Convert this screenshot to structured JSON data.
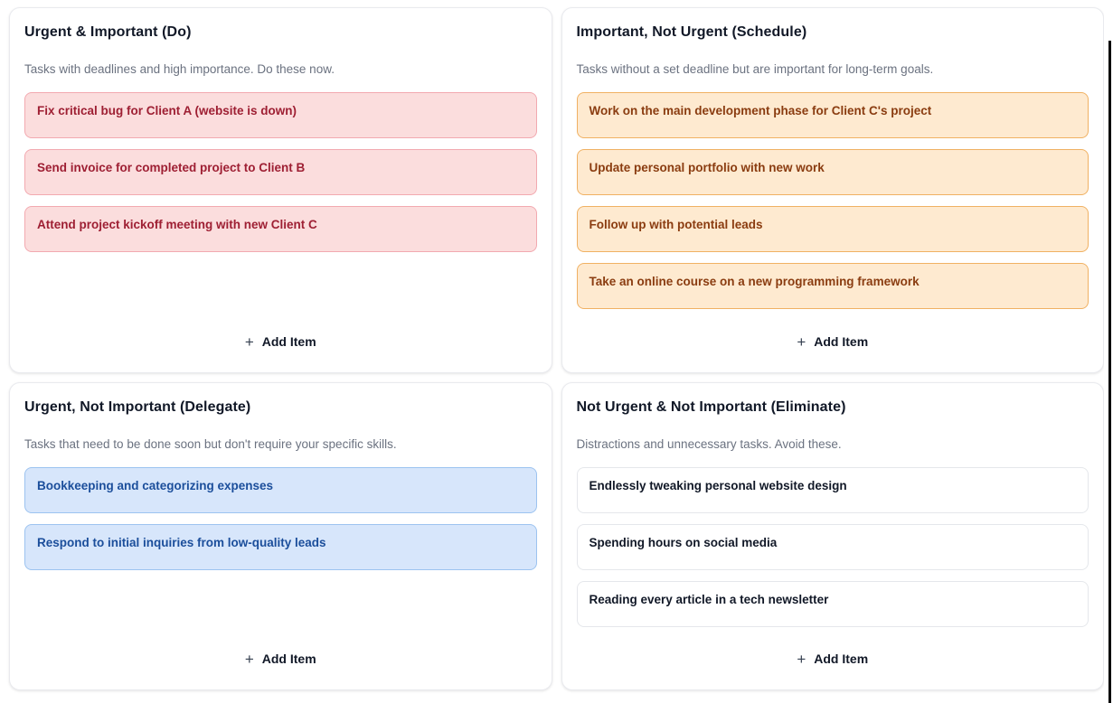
{
  "page": {
    "plus_icon": "+",
    "add_item_label": "Add Item"
  },
  "quadrants": [
    {
      "id": "do",
      "title": "Urgent & Important (Do)",
      "description": "Tasks with deadlines and high importance. Do these now.",
      "colors": {
        "card_bg": "#fbdddd",
        "card_border": "#f2a9b0",
        "card_text": "#9e1f33"
      },
      "items": [
        "Fix critical bug for Client A (website is down)",
        "Send invoice for completed project to Client B",
        "Attend project kickoff meeting with new Client C"
      ]
    },
    {
      "id": "schedule",
      "title": "Important, Not Urgent (Schedule)",
      "description": "Tasks without a set deadline but are important for long-term goals.",
      "colors": {
        "card_bg": "#feead0",
        "card_border": "#f0b163",
        "card_text": "#8a3c10"
      },
      "items": [
        "Work on the main development phase for Client C's project",
        "Update personal portfolio with new work",
        "Follow up with potential leads",
        "Take an online course on a new programming framework"
      ]
    },
    {
      "id": "delegate",
      "title": "Urgent, Not Important (Delegate)",
      "description": "Tasks that need to be done soon but don't require your specific skills.",
      "colors": {
        "card_bg": "#d7e6fb",
        "card_border": "#9cc3f0",
        "card_text": "#1b4e9b"
      },
      "items": [
        "Bookkeeping and categorizing expenses",
        "Respond to initial inquiries from low-quality leads"
      ]
    },
    {
      "id": "eliminate",
      "title": "Not Urgent & Not Important (Eliminate)",
      "description": "Distractions and unnecessary tasks. Avoid these.",
      "colors": {
        "card_bg": "#ffffff",
        "card_border": "#e5e7eb",
        "card_text": "#111827"
      },
      "items": [
        "Endlessly tweaking personal website design",
        "Spending hours on social media",
        "Reading every article in a tech newsletter"
      ]
    }
  ]
}
